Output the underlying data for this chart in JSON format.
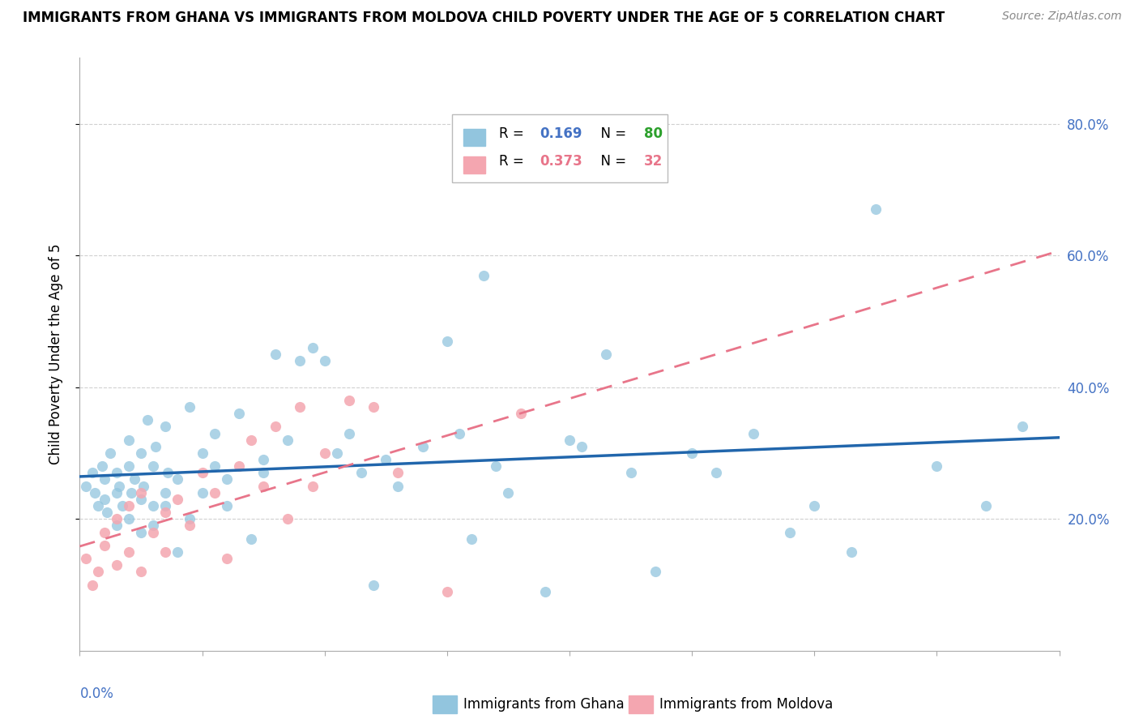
{
  "title": "IMMIGRANTS FROM GHANA VS IMMIGRANTS FROM MOLDOVA CHILD POVERTY UNDER THE AGE OF 5 CORRELATION CHART",
  "source": "Source: ZipAtlas.com",
  "ylabel": "Child Poverty Under the Age of 5",
  "xmin": 0.0,
  "xmax": 0.08,
  "ymin": 0.0,
  "ymax": 0.9,
  "ghana_color": "#92c5de",
  "moldova_color": "#f4a6b0",
  "ghana_line_color": "#2166ac",
  "moldova_line_color": "#e8758a",
  "ghana_R": "0.169",
  "ghana_N": "80",
  "moldova_R": "0.373",
  "moldova_N": "32",
  "ghana_x": [
    0.0005,
    0.001,
    0.0012,
    0.0015,
    0.0018,
    0.002,
    0.002,
    0.0022,
    0.0025,
    0.003,
    0.003,
    0.003,
    0.0032,
    0.0035,
    0.004,
    0.004,
    0.004,
    0.0042,
    0.0045,
    0.005,
    0.005,
    0.005,
    0.0052,
    0.0055,
    0.006,
    0.006,
    0.006,
    0.0062,
    0.007,
    0.007,
    0.007,
    0.0072,
    0.008,
    0.008,
    0.009,
    0.009,
    0.01,
    0.01,
    0.011,
    0.011,
    0.012,
    0.012,
    0.013,
    0.014,
    0.015,
    0.015,
    0.016,
    0.017,
    0.018,
    0.019,
    0.02,
    0.021,
    0.022,
    0.023,
    0.024,
    0.025,
    0.026,
    0.028,
    0.03,
    0.031,
    0.032,
    0.033,
    0.034,
    0.035,
    0.038,
    0.04,
    0.041,
    0.043,
    0.045,
    0.047,
    0.05,
    0.052,
    0.055,
    0.058,
    0.06,
    0.063,
    0.065,
    0.07,
    0.074,
    0.077
  ],
  "ghana_y": [
    0.25,
    0.27,
    0.24,
    0.22,
    0.28,
    0.23,
    0.26,
    0.21,
    0.3,
    0.24,
    0.19,
    0.27,
    0.25,
    0.22,
    0.28,
    0.2,
    0.32,
    0.24,
    0.26,
    0.23,
    0.18,
    0.3,
    0.25,
    0.35,
    0.22,
    0.19,
    0.28,
    0.31,
    0.24,
    0.34,
    0.22,
    0.27,
    0.26,
    0.15,
    0.2,
    0.37,
    0.3,
    0.24,
    0.28,
    0.33,
    0.26,
    0.22,
    0.36,
    0.17,
    0.29,
    0.27,
    0.45,
    0.32,
    0.44,
    0.46,
    0.44,
    0.3,
    0.33,
    0.27,
    0.1,
    0.29,
    0.25,
    0.31,
    0.47,
    0.33,
    0.17,
    0.57,
    0.28,
    0.24,
    0.09,
    0.32,
    0.31,
    0.45,
    0.27,
    0.12,
    0.3,
    0.27,
    0.33,
    0.18,
    0.22,
    0.15,
    0.67,
    0.28,
    0.22,
    0.34
  ],
  "moldova_x": [
    0.0005,
    0.001,
    0.0015,
    0.002,
    0.002,
    0.003,
    0.003,
    0.004,
    0.004,
    0.005,
    0.005,
    0.006,
    0.007,
    0.007,
    0.008,
    0.009,
    0.01,
    0.011,
    0.012,
    0.013,
    0.014,
    0.015,
    0.016,
    0.017,
    0.018,
    0.019,
    0.02,
    0.022,
    0.024,
    0.026,
    0.03,
    0.036
  ],
  "moldova_y": [
    0.14,
    0.1,
    0.12,
    0.16,
    0.18,
    0.13,
    0.2,
    0.15,
    0.22,
    0.12,
    0.24,
    0.18,
    0.15,
    0.21,
    0.23,
    0.19,
    0.27,
    0.24,
    0.14,
    0.28,
    0.32,
    0.25,
    0.34,
    0.2,
    0.37,
    0.25,
    0.3,
    0.38,
    0.37,
    0.27,
    0.09,
    0.36
  ]
}
